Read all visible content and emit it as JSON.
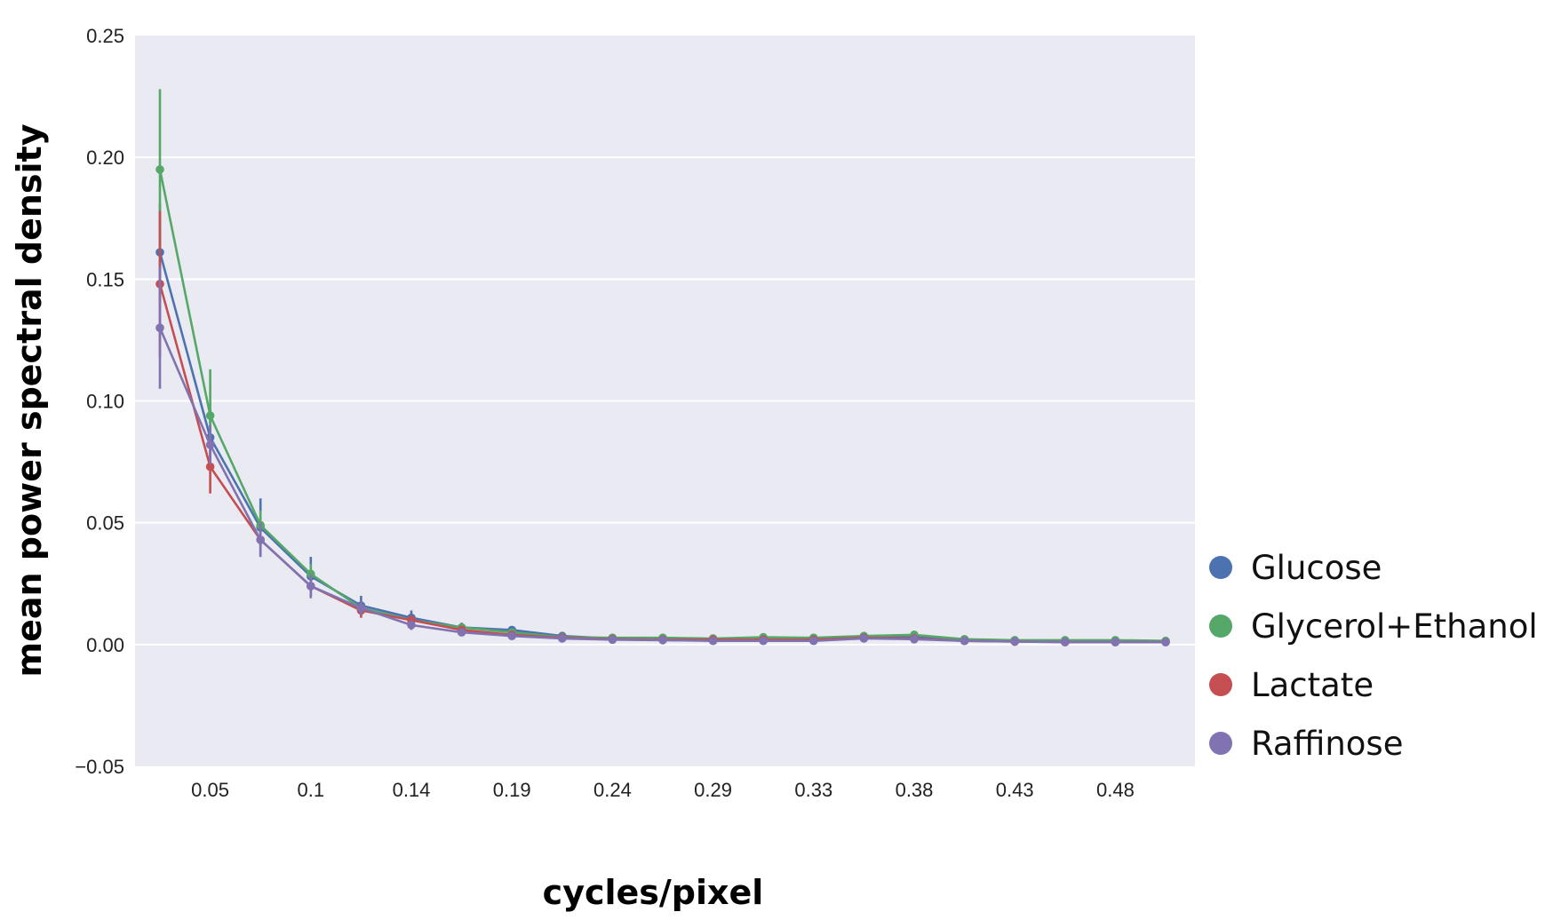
{
  "chart_data": {
    "type": "line",
    "title": "",
    "xlabel": "cycles/pixel",
    "ylabel": "mean power spectral density",
    "x_tick_labels": [
      "0.05",
      "0.1",
      "0.14",
      "0.19",
      "0.24",
      "0.29",
      "0.33",
      "0.38",
      "0.43",
      "0.48"
    ],
    "y_tick_labels": [
      "−0.05",
      "0.00",
      "0.05",
      "0.10",
      "0.15",
      "0.20",
      "0.25"
    ],
    "ylim": [
      -0.05,
      0.25
    ],
    "grid": true,
    "legend_position": "right",
    "x": [
      0.024,
      0.048,
      0.072,
      0.095,
      0.119,
      0.143,
      0.167,
      0.191,
      0.214,
      0.238,
      0.262,
      0.286,
      0.31,
      0.333,
      0.357,
      0.381,
      0.405,
      0.429,
      0.452,
      0.476,
      0.5
    ],
    "series": [
      {
        "name": "Glucose",
        "color": "#4c72b0",
        "values": [
          0.161,
          0.085,
          0.048,
          0.028,
          0.016,
          0.011,
          0.007,
          0.006,
          0.0035,
          0.0025,
          0.0022,
          0.002,
          0.0022,
          0.0022,
          0.003,
          0.003,
          0.002,
          0.0015,
          0.0015,
          0.0015,
          0.0012
        ],
        "err": [
          0.02,
          0.012,
          0.012,
          0.008,
          0.004,
          0.003,
          0.002,
          0.001,
          0.001,
          0.0005,
          0.0005,
          0.0005,
          0.0005,
          0.0005,
          0.0005,
          0.0005,
          0.0005,
          0.0005,
          0.0005,
          0.0005,
          0.0005
        ]
      },
      {
        "name": "Glycerol+Ethanol",
        "color": "#55a868",
        "values": [
          0.195,
          0.094,
          0.049,
          0.029,
          0.015,
          0.01,
          0.007,
          0.005,
          0.003,
          0.0028,
          0.0028,
          0.0025,
          0.003,
          0.0028,
          0.0035,
          0.004,
          0.0022,
          0.0018,
          0.0018,
          0.0018,
          0.0015
        ],
        "err": [
          0.033,
          0.019,
          0.006,
          0.004,
          0.003,
          0.002,
          0.001,
          0.001,
          0.0005,
          0.0005,
          0.0005,
          0.0005,
          0.0005,
          0.0005,
          0.0005,
          0.0005,
          0.0005,
          0.0005,
          0.0005,
          0.0005,
          0.0005
        ]
      },
      {
        "name": "Lactate",
        "color": "#c44e52",
        "values": [
          0.148,
          0.073,
          0.043,
          0.024,
          0.014,
          0.01,
          0.006,
          0.004,
          0.0028,
          0.0022,
          0.002,
          0.002,
          0.002,
          0.002,
          0.0028,
          0.0025,
          0.0015,
          0.0012,
          0.001,
          0.001,
          0.001
        ],
        "err": [
          0.03,
          0.011,
          0.005,
          0.004,
          0.003,
          0.002,
          0.001,
          0.001,
          0.0005,
          0.0005,
          0.0005,
          0.0005,
          0.0005,
          0.0005,
          0.0005,
          0.0005,
          0.0005,
          0.0005,
          0.0005,
          0.0005,
          0.0005
        ]
      },
      {
        "name": "Raffinose",
        "color": "#8172b2",
        "values": [
          0.13,
          0.082,
          0.043,
          0.024,
          0.015,
          0.008,
          0.005,
          0.0035,
          0.0025,
          0.002,
          0.0018,
          0.0015,
          0.0015,
          0.0015,
          0.0025,
          0.0022,
          0.0015,
          0.0012,
          0.001,
          0.001,
          0.001
        ],
        "err": [
          0.025,
          0.008,
          0.007,
          0.005,
          0.003,
          0.002,
          0.001,
          0.001,
          0.0005,
          0.0005,
          0.0005,
          0.0005,
          0.0005,
          0.0005,
          0.0005,
          0.0005,
          0.0005,
          0.0005,
          0.0005,
          0.0005,
          0.0005
        ]
      }
    ]
  }
}
